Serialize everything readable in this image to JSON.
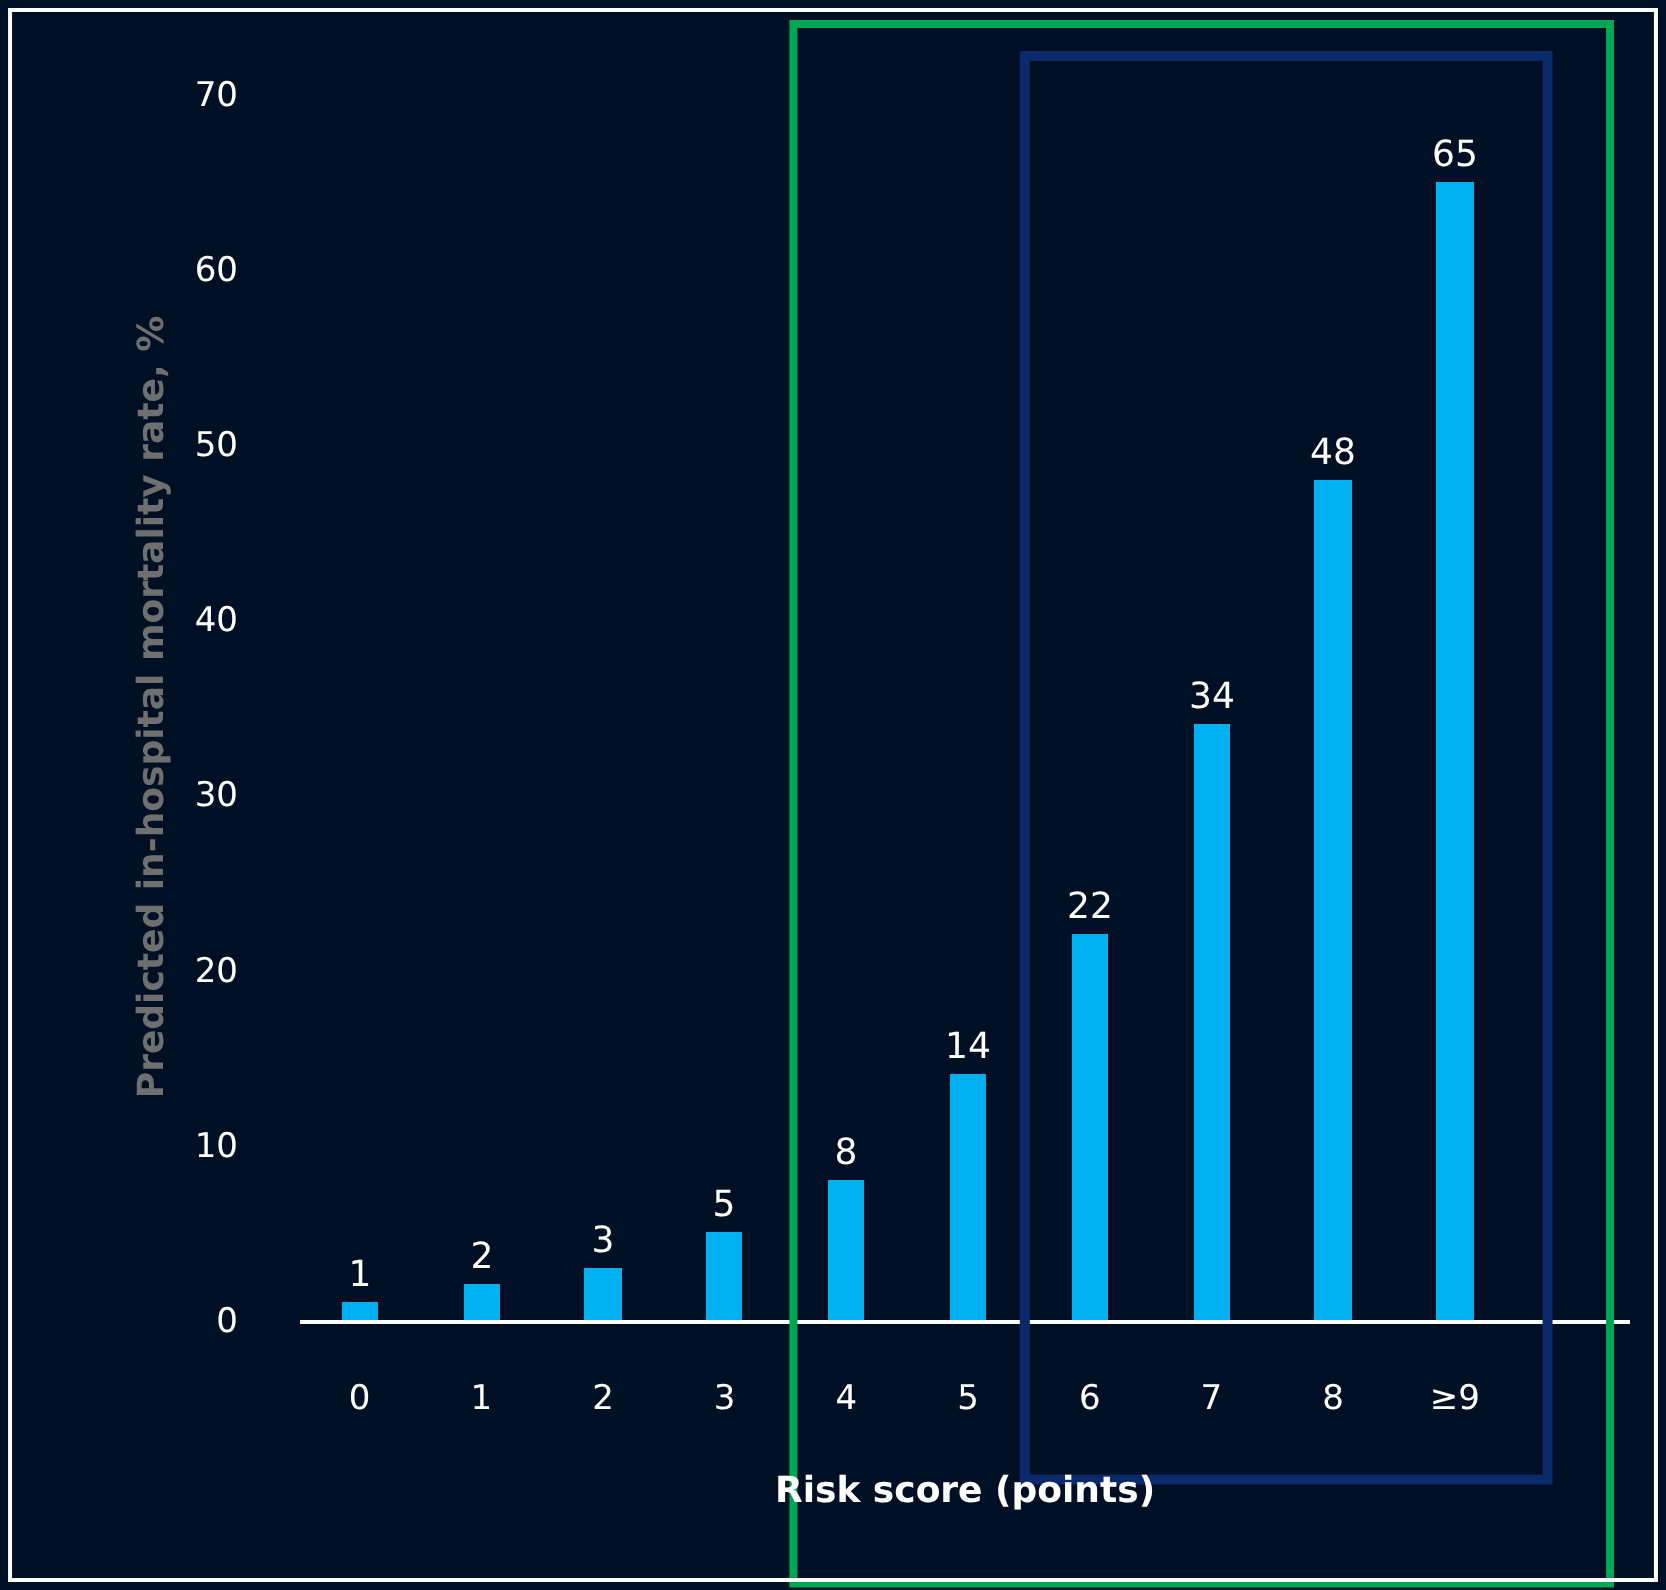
{
  "chart_data": {
    "type": "bar",
    "xlabel": "Risk score (points)",
    "ylabel": "Predicted in-hospital mortality rate, %",
    "categories": [
      "0",
      "1",
      "2",
      "3",
      "4",
      "5",
      "6",
      "7",
      "8",
      "≥9"
    ],
    "values": [
      1,
      2,
      3,
      5,
      8,
      14,
      22,
      34,
      48,
      65
    ],
    "color": "#00b0f0",
    "ylim": [
      0,
      70
    ],
    "yticks": [
      0,
      10,
      20,
      30,
      40,
      50,
      60,
      70
    ],
    "data_labels": true,
    "grid": false,
    "legend": false
  }
}
